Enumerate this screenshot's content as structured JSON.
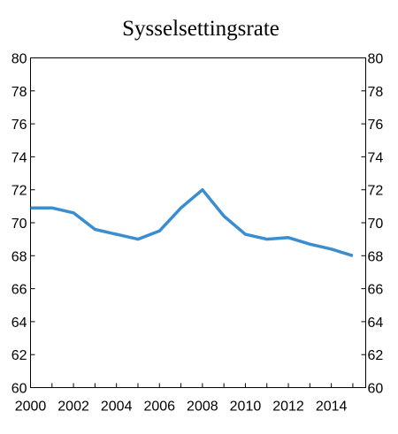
{
  "chart_data": {
    "type": "line",
    "title": "Sysselsettingsrate",
    "xlabel": "",
    "ylabel": "",
    "x": [
      2000,
      2001,
      2002,
      2003,
      2004,
      2005,
      2006,
      2007,
      2008,
      2009,
      2010,
      2011,
      2012,
      2013,
      2014,
      2015
    ],
    "series": [
      {
        "values": [
          70.9,
          70.9,
          70.6,
          69.6,
          69.3,
          69.0,
          69.5,
          70.9,
          72.0,
          70.4,
          69.3,
          69.0,
          69.1,
          68.7,
          68.4,
          68.0
        ],
        "color": "#3a8dcf"
      }
    ],
    "xticks": [
      "2000",
      "2002",
      "2004",
      "2006",
      "2008",
      "2010",
      "2012",
      "2014"
    ],
    "yticks": [
      "60",
      "62",
      "64",
      "66",
      "68",
      "70",
      "72",
      "74",
      "76",
      "78",
      "80"
    ],
    "xlim": [
      2000,
      2015.6
    ],
    "ylim": [
      60,
      80
    ],
    "grid": false,
    "right_axis": true
  }
}
